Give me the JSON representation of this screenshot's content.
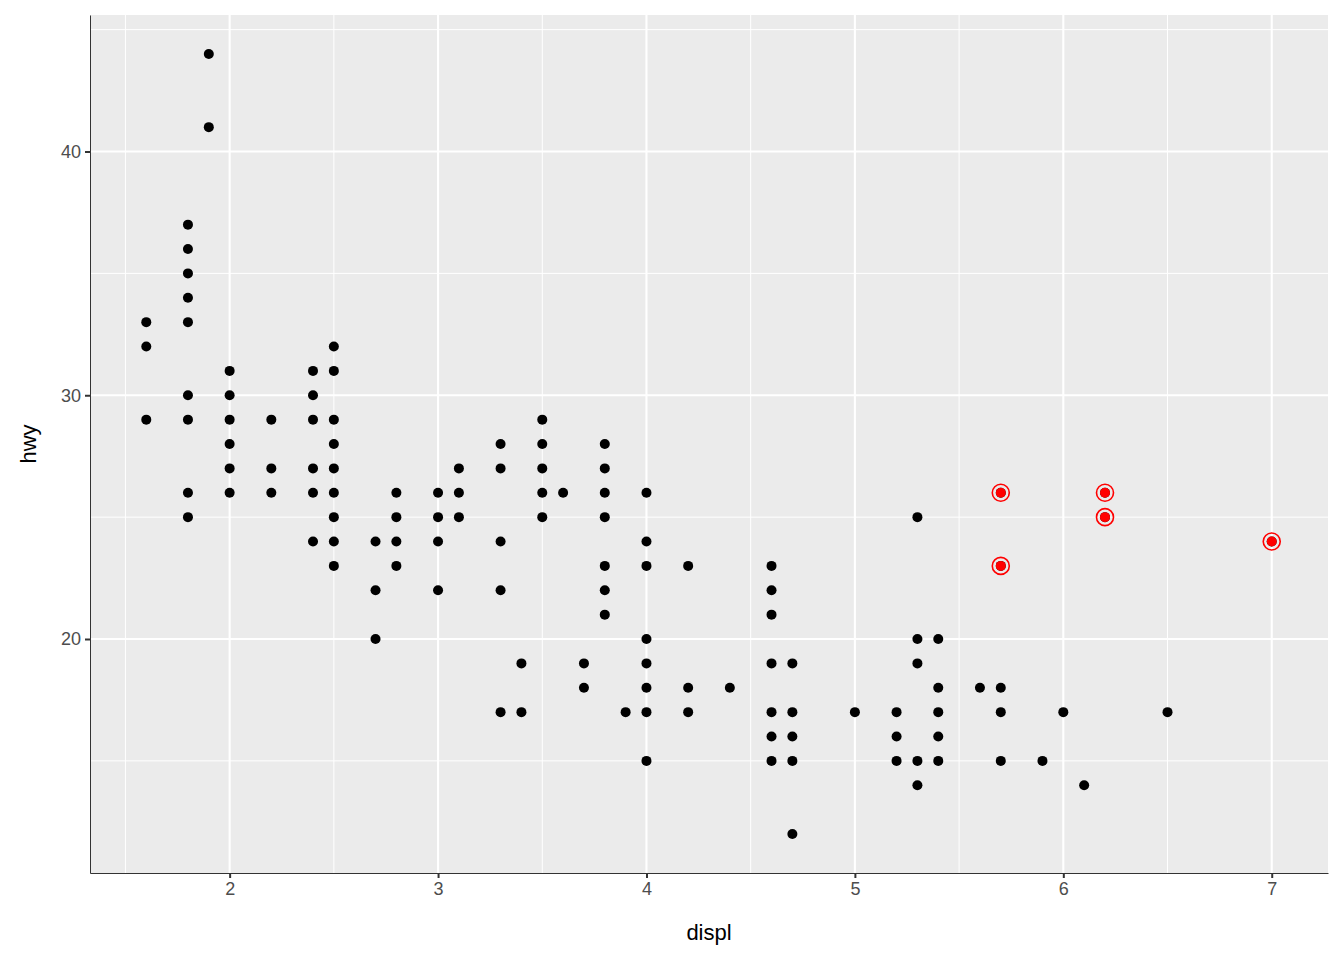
{
  "chart_data": {
    "type": "scatter",
    "x_label": "displ",
    "y_label": "hwy",
    "xlim": [
      1.33,
      7.27
    ],
    "ylim": [
      10.4,
      45.6
    ],
    "xticks": [
      2,
      3,
      4,
      5,
      6,
      7
    ],
    "yticks": [
      20,
      30,
      40
    ],
    "grid": true,
    "series": [
      {
        "color": "#000000",
        "marker": "circle",
        "x": [
          1.6,
          1.6,
          1.6,
          1.8,
          1.8,
          1.8,
          1.8,
          1.8,
          1.8,
          1.8,
          1.8,
          1.8,
          1.9,
          1.9,
          2.0,
          2.0,
          2.0,
          2.0,
          2.0,
          2.0,
          2.2,
          2.2,
          2.2,
          2.4,
          2.4,
          2.4,
          2.4,
          2.4,
          2.4,
          2.5,
          2.5,
          2.5,
          2.5,
          2.5,
          2.5,
          2.5,
          2.5,
          2.5,
          2.7,
          2.7,
          2.7,
          2.8,
          2.8,
          2.8,
          2.8,
          3.0,
          3.0,
          3.0,
          3.0,
          3.1,
          3.1,
          3.1,
          3.3,
          3.3,
          3.3,
          3.3,
          3.3,
          3.4,
          3.4,
          3.5,
          3.5,
          3.5,
          3.5,
          3.5,
          3.6,
          3.7,
          3.7,
          3.8,
          3.8,
          3.8,
          3.8,
          3.8,
          3.8,
          3.8,
          3.9,
          4.0,
          4.0,
          4.0,
          4.0,
          4.0,
          4.0,
          4.0,
          4.0,
          4.2,
          4.2,
          4.2,
          4.4,
          4.6,
          4.6,
          4.6,
          4.6,
          4.6,
          4.6,
          4.6,
          4.7,
          4.7,
          4.7,
          4.7,
          4.7,
          5.0,
          5.2,
          5.2,
          5.2,
          5.3,
          5.3,
          5.3,
          5.3,
          5.3,
          5.4,
          5.4,
          5.4,
          5.4,
          5.4,
          5.6,
          5.7,
          5.7,
          5.7,
          5.7,
          5.7,
          5.9,
          6.0,
          6.1,
          6.2,
          6.2,
          6.5,
          7.0
        ],
        "values": [
          33,
          32,
          29,
          37,
          36,
          35,
          34,
          33,
          30,
          29,
          26,
          25,
          44,
          41,
          31,
          30,
          29,
          28,
          27,
          26,
          29,
          27,
          26,
          31,
          30,
          29,
          27,
          26,
          24,
          32,
          31,
          29,
          28,
          27,
          26,
          25,
          24,
          23,
          24,
          22,
          20,
          26,
          25,
          24,
          23,
          26,
          25,
          24,
          22,
          27,
          26,
          25,
          28,
          27,
          24,
          22,
          17,
          19,
          17,
          29,
          28,
          27,
          26,
          25,
          26,
          19,
          18,
          28,
          27,
          26,
          25,
          23,
          22,
          21,
          17,
          26,
          24,
          23,
          20,
          19,
          18,
          17,
          15,
          23,
          18,
          17,
          18,
          23,
          22,
          21,
          19,
          17,
          16,
          15,
          19,
          17,
          16,
          15,
          12,
          17,
          17,
          16,
          15,
          25,
          20,
          19,
          15,
          14,
          20,
          18,
          17,
          16,
          15,
          18,
          26,
          23,
          18,
          17,
          15,
          15,
          17,
          14,
          26,
          25,
          17,
          24
        ]
      },
      {
        "color": "#ff0000",
        "marker": "ringed",
        "x": [
          5.7,
          5.7,
          6.2,
          6.2,
          7.0
        ],
        "values": [
          26,
          23,
          26,
          25,
          24
        ]
      }
    ]
  }
}
